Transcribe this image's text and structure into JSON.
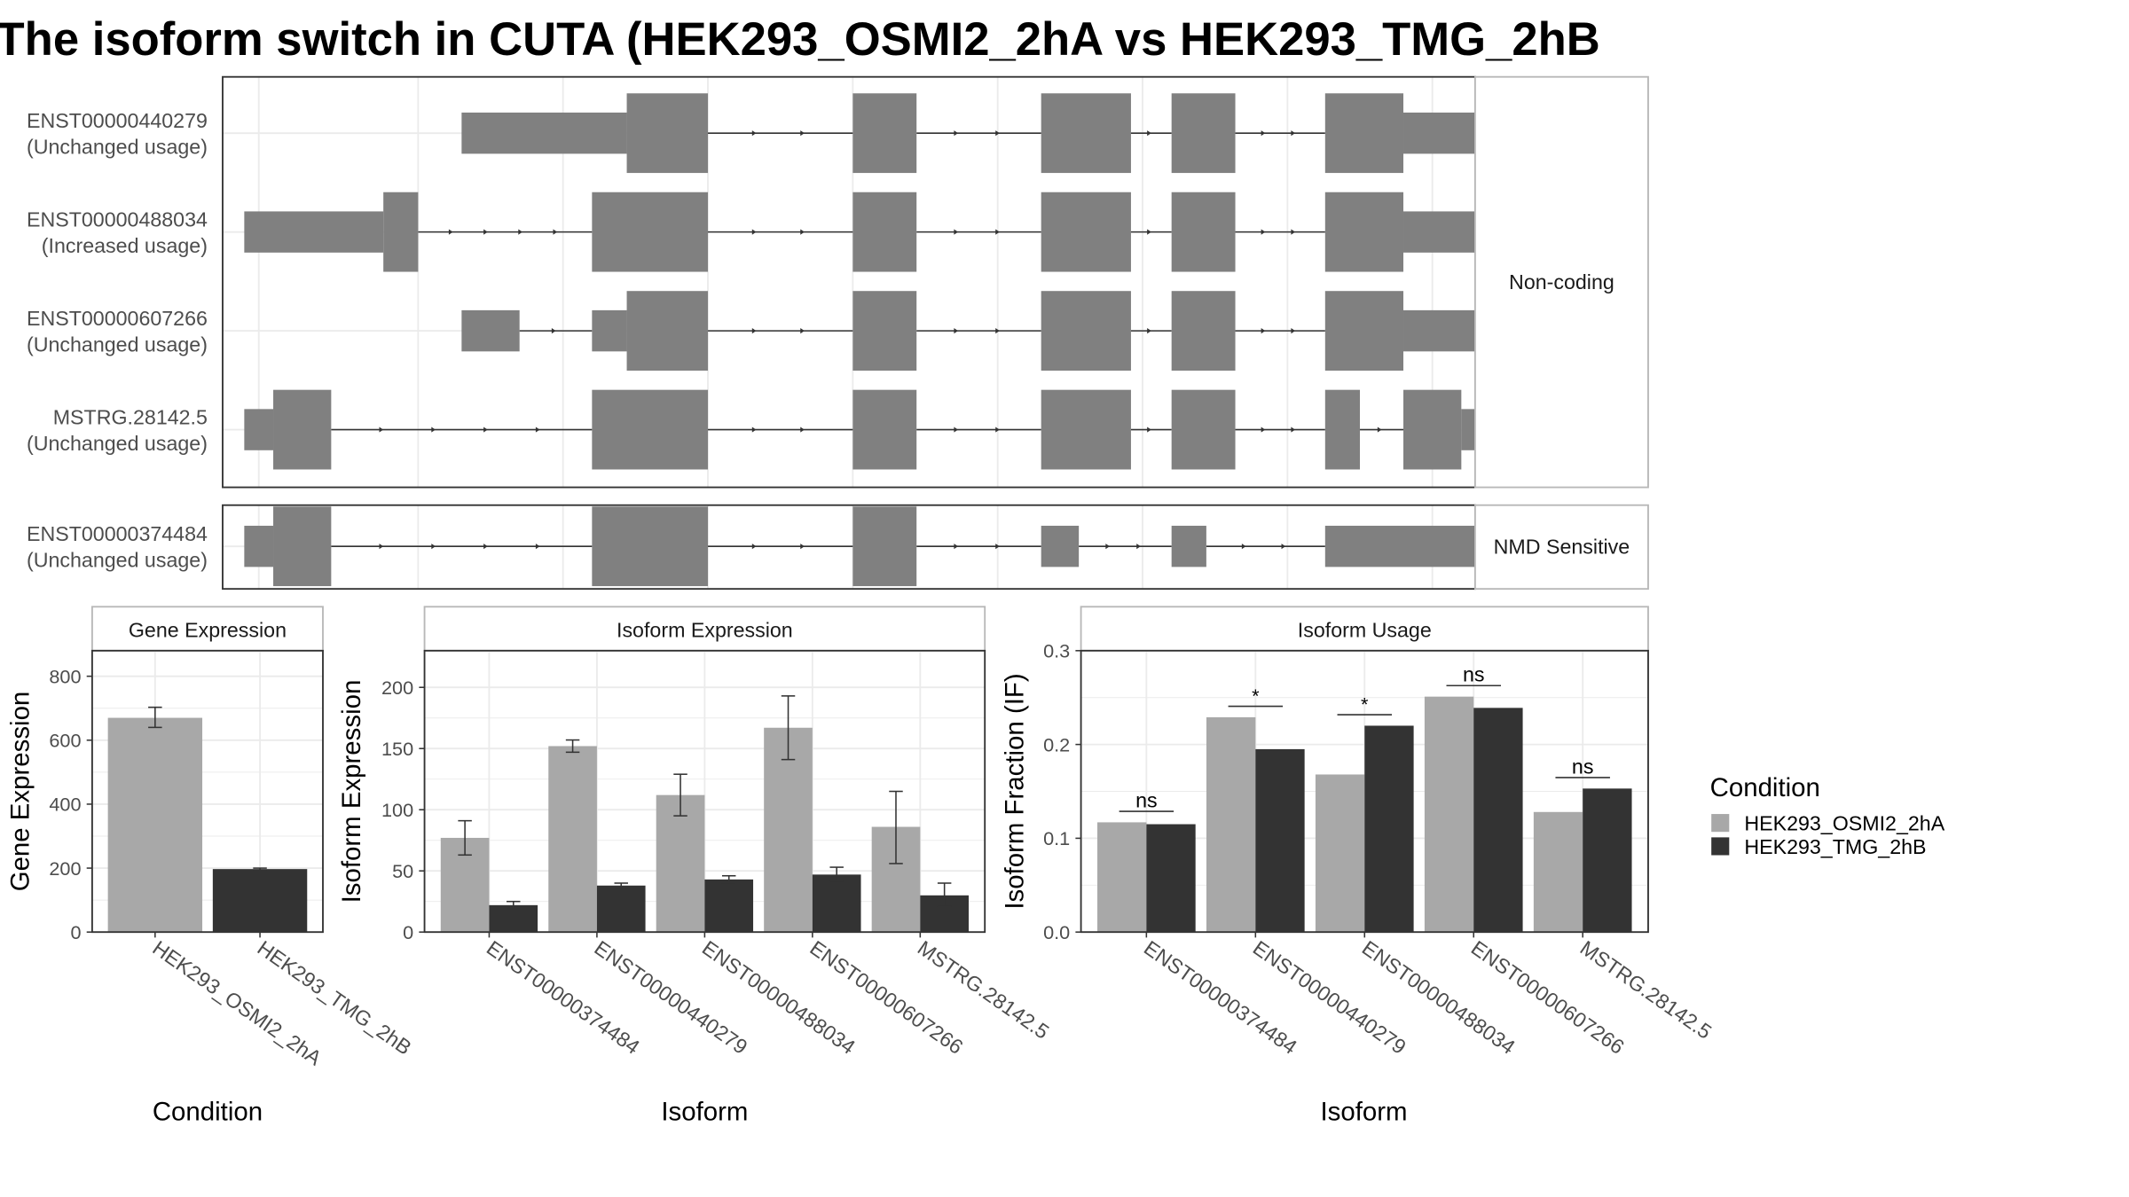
{
  "title": "The isoform switch in CUTA (HEK293_OSMI2_2hA vs HEK293_TMG_2hB",
  "colors": {
    "exon": "#808080",
    "condA": "#a8a8a8",
    "condB": "#333333",
    "grid": "#ebebeb",
    "frame": "#333333",
    "strip_border": "#b8b8b8"
  },
  "structure": {
    "facets": [
      {
        "label": "Non-coding",
        "transcripts": [
          {
            "id": "ENST00000440279",
            "usage": "(Unchanged usage)",
            "exons": [
              [
                0.15,
                0.72,
                "utr"
              ],
              [
                0.72,
                1.0,
                "cds"
              ],
              [
                1.5,
                1.72,
                "cds"
              ],
              [
                2.15,
                2.46,
                "cds"
              ],
              [
                2.6,
                2.82,
                "cds"
              ],
              [
                3.13,
                3.4,
                "cds"
              ],
              [
                3.4,
                3.65,
                "utr"
              ]
            ]
          },
          {
            "id": "ENST00000488034",
            "usage": "(Increased usage)",
            "exons": [
              [
                -0.6,
                -0.12,
                "utr"
              ],
              [
                -0.12,
                0.0,
                "cds"
              ],
              [
                0.6,
                1.0,
                "cds"
              ],
              [
                1.5,
                1.72,
                "cds"
              ],
              [
                2.15,
                2.46,
                "cds"
              ],
              [
                2.6,
                2.82,
                "cds"
              ],
              [
                3.13,
                3.4,
                "cds"
              ],
              [
                3.4,
                3.9,
                "utr"
              ]
            ]
          },
          {
            "id": "ENST00000607266",
            "usage": "(Unchanged usage)",
            "exons": [
              [
                0.15,
                0.35,
                "utr"
              ],
              [
                0.6,
                0.72,
                "utr"
              ],
              [
                0.72,
                1.0,
                "cds"
              ],
              [
                1.5,
                1.72,
                "cds"
              ],
              [
                2.15,
                2.46,
                "cds"
              ],
              [
                2.6,
                2.82,
                "cds"
              ],
              [
                3.13,
                3.4,
                "cds"
              ],
              [
                3.4,
                3.65,
                "utr"
              ]
            ]
          },
          {
            "id": "MSTRG.28142.5",
            "usage": "(Unchanged usage)",
            "exons": [
              [
                -0.6,
                -0.5,
                "utr"
              ],
              [
                -0.5,
                -0.3,
                "cds"
              ],
              [
                0.6,
                1.0,
                "cds"
              ],
              [
                1.5,
                1.72,
                "cds"
              ],
              [
                2.15,
                2.46,
                "cds"
              ],
              [
                2.6,
                2.82,
                "cds"
              ],
              [
                3.13,
                3.25,
                "cds"
              ],
              [
                3.4,
                3.6,
                "cds"
              ],
              [
                3.6,
                3.9,
                "utr"
              ]
            ]
          }
        ]
      },
      {
        "label": "NMD Sensitive",
        "transcripts": [
          {
            "id": "ENST00000374484",
            "usage": "(Unchanged usage)",
            "exons": [
              [
                -0.6,
                -0.5,
                "utr"
              ],
              [
                -0.5,
                -0.3,
                "cds"
              ],
              [
                0.6,
                1.0,
                "cds"
              ],
              [
                1.5,
                1.72,
                "cds"
              ],
              [
                2.15,
                2.28,
                "utr"
              ],
              [
                2.6,
                2.72,
                "utr"
              ],
              [
                3.13,
                3.65,
                "utr"
              ]
            ]
          }
        ]
      }
    ]
  },
  "chart_data": [
    {
      "type": "bar",
      "title": "Gene Expression",
      "xlabel": "Condition",
      "ylabel": "Gene Expression",
      "ylim": [
        0,
        880
      ],
      "yticks": [
        0,
        200,
        400,
        600,
        800
      ],
      "categories": [
        "HEK293_OSMI2_2hA",
        "HEK293_TMG_2hB"
      ],
      "values": [
        670,
        197
      ],
      "errors": [
        [
          640,
          703
        ],
        [
          194,
          200
        ]
      ]
    },
    {
      "type": "bar",
      "title": "Isoform Expression",
      "xlabel": "Isoform",
      "ylabel": "Isoform Expression",
      "ylim": [
        0,
        230
      ],
      "yticks": [
        0,
        50,
        100,
        150,
        200
      ],
      "categories": [
        "ENST00000374484",
        "ENST00000440279",
        "ENST00000488034",
        "ENST00000607266",
        "MSTRG.28142.5"
      ],
      "series": [
        {
          "name": "HEK293_OSMI2_2hA",
          "values": [
            77,
            152,
            112,
            167,
            86
          ],
          "errors": [
            [
              63,
              91
            ],
            [
              147,
              157
            ],
            [
              95,
              129
            ],
            [
              141,
              193
            ],
            [
              56,
              115
            ]
          ]
        },
        {
          "name": "HEK293_TMG_2hB",
          "values": [
            22,
            38,
            43,
            47,
            30
          ],
          "errors": [
            [
              19,
              25
            ],
            [
              36,
              40
            ],
            [
              40,
              46
            ],
            [
              42,
              53
            ],
            [
              21,
              40
            ]
          ]
        }
      ]
    },
    {
      "type": "bar",
      "title": "Isoform Usage",
      "xlabel": "Isoform",
      "ylabel": "Isoform Fraction (IF)",
      "ylim": [
        0,
        0.3
      ],
      "yticks": [
        0.0,
        0.1,
        0.2,
        0.3
      ],
      "ytick_labels": [
        "0.0",
        "0.1",
        "0.2",
        "0.3"
      ],
      "categories": [
        "ENST00000374484",
        "ENST00000440279",
        "ENST00000488034",
        "ENST00000607266",
        "MSTRG.28142.5"
      ],
      "series": [
        {
          "name": "HEK293_OSMI2_2hA",
          "values": [
            0.117,
            0.229,
            0.168,
            0.251,
            0.128
          ]
        },
        {
          "name": "HEK293_TMG_2hB",
          "values": [
            0.115,
            0.195,
            0.22,
            0.239,
            0.153
          ]
        }
      ],
      "significance": [
        "ns",
        "*",
        "*",
        "ns",
        "ns"
      ]
    }
  ],
  "legend": {
    "title": "Condition",
    "items": [
      "HEK293_OSMI2_2hA",
      "HEK293_TMG_2hB"
    ]
  }
}
